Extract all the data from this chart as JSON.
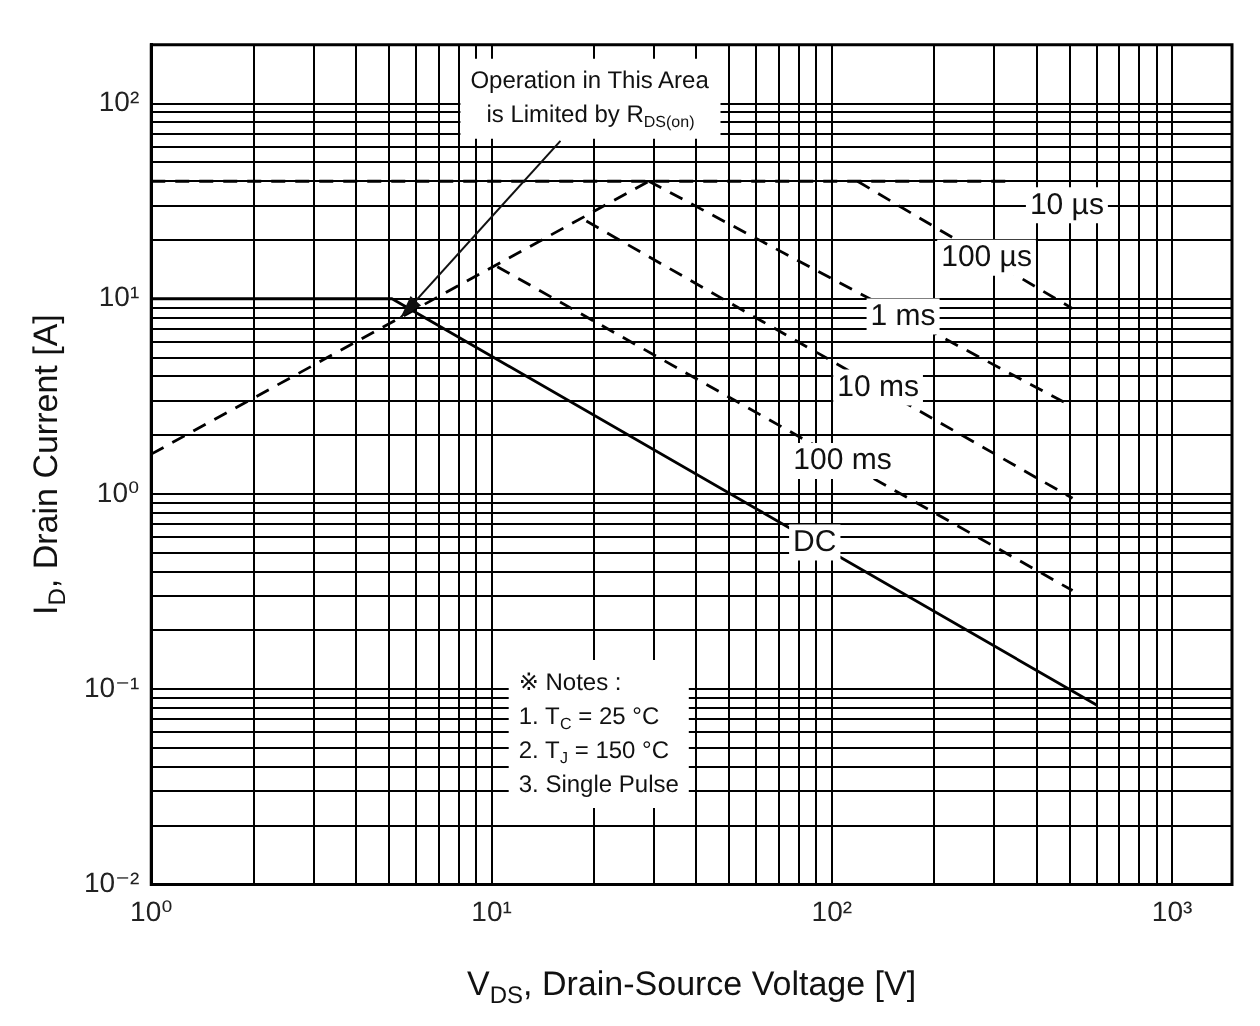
{
  "chart_data": {
    "type": "line",
    "xlabel": "V$_{DS}$, Drain-Source Voltage [V]",
    "ylabel": "I$_{D}$, Drain Current [A]",
    "log": "xy",
    "grid": true,
    "xlim": [
      1,
      1500
    ],
    "ylim": [
      0.01,
      200
    ],
    "xticks": [
      {
        "value": 1,
        "label": "10⁰"
      },
      {
        "value": 2,
        "label": null
      },
      {
        "value": 3,
        "label": null
      },
      {
        "value": 4,
        "label": null
      },
      {
        "value": 5,
        "label": null
      },
      {
        "value": 6,
        "label": null
      },
      {
        "value": 7,
        "label": null
      },
      {
        "value": 8,
        "label": null
      },
      {
        "value": 9,
        "label": null
      },
      {
        "value": 10,
        "label": "10¹"
      },
      {
        "value": 20,
        "label": null
      },
      {
        "value": 30,
        "label": null
      },
      {
        "value": 40,
        "label": null
      },
      {
        "value": 50,
        "label": null
      },
      {
        "value": 60,
        "label": null
      },
      {
        "value": 70,
        "label": null
      },
      {
        "value": 80,
        "label": null
      },
      {
        "value": 90,
        "label": null
      },
      {
        "value": 100,
        "label": "10²"
      },
      {
        "value": 200,
        "label": null
      },
      {
        "value": 300,
        "label": null
      },
      {
        "value": 400,
        "label": null
      },
      {
        "value": 500,
        "label": null
      },
      {
        "value": 600,
        "label": null
      },
      {
        "value": 700,
        "label": null
      },
      {
        "value": 800,
        "label": null
      },
      {
        "value": 900,
        "label": null
      },
      {
        "value": 1000,
        "label": "10³"
      }
    ],
    "yticks": [
      {
        "value": 0.01,
        "label": "10⁻²"
      },
      {
        "value": 0.02,
        "label": null
      },
      {
        "value": 0.03,
        "label": null
      },
      {
        "value": 0.04,
        "label": null
      },
      {
        "value": 0.05,
        "label": null
      },
      {
        "value": 0.06,
        "label": null
      },
      {
        "value": 0.07,
        "label": null
      },
      {
        "value": 0.08,
        "label": null
      },
      {
        "value": 0.09,
        "label": null
      },
      {
        "value": 0.1,
        "label": "10⁻¹"
      },
      {
        "value": 0.2,
        "label": null
      },
      {
        "value": 0.3,
        "label": null
      },
      {
        "value": 0.4,
        "label": null
      },
      {
        "value": 0.5,
        "label": null
      },
      {
        "value": 0.6,
        "label": null
      },
      {
        "value": 0.7,
        "label": null
      },
      {
        "value": 0.8,
        "label": null
      },
      {
        "value": 0.9,
        "label": null
      },
      {
        "value": 1,
        "label": "10⁰"
      },
      {
        "value": 2,
        "label": null
      },
      {
        "value": 3,
        "label": null
      },
      {
        "value": 4,
        "label": null
      },
      {
        "value": 5,
        "label": null
      },
      {
        "value": 6,
        "label": null
      },
      {
        "value": 7,
        "label": null
      },
      {
        "value": 8,
        "label": null
      },
      {
        "value": 9,
        "label": null
      },
      {
        "value": 10,
        "label": "10¹"
      },
      {
        "value": 20,
        "label": null
      },
      {
        "value": 30,
        "label": null
      },
      {
        "value": 40,
        "label": null
      },
      {
        "value": 50,
        "label": null
      },
      {
        "value": 60,
        "label": null
      },
      {
        "value": 70,
        "label": null
      },
      {
        "value": 80,
        "label": null
      },
      {
        "value": 90,
        "label": null
      },
      {
        "value": 100,
        "label": "10²"
      }
    ],
    "series": [
      {
        "color": "#000000",
        "line_style": "dashed",
        "x": [
          1,
          29
        ],
        "values": [
          1.6,
          40
        ]
      },
      {
        "name": "10 µs",
        "color": "#000000",
        "line_style": "dashed",
        "x": [
          1,
          336
        ],
        "values": [
          40,
          40
        ]
      },
      {
        "name": "100 µs",
        "color": "#000000",
        "line_style": "dashed",
        "x": [
          119,
          510
        ],
        "values": [
          40,
          8.9
        ]
      },
      {
        "name": "1 ms",
        "color": "#000000",
        "line_style": "dashed",
        "x": [
          29,
          510
        ],
        "values": [
          40,
          2.8
        ]
      },
      {
        "name": "10 ms",
        "color": "#000000",
        "line_style": "dashed",
        "x": [
          19,
          510
        ],
        "values": [
          25,
          0.95
        ]
      },
      {
        "name": "100 ms",
        "color": "#000000",
        "line_style": "dashed",
        "x": [
          10.4,
          510
        ],
        "values": [
          14.6,
          0.32
        ]
      },
      {
        "name": "DC",
        "color": "#000000",
        "line_style": "solid",
        "x": [
          1,
          5.1,
          600
        ],
        "values": [
          10,
          10,
          0.083
        ]
      }
    ],
    "annotations": [
      {
        "text": "Operation in This Area\nis Limited by R$_{DS(on)}$",
        "x": 5.4,
        "y": 8
      },
      "※ Notes :\n1. T$_{C}$ = 25 °C\n2. T$_{J}$ = 150 °C\n3. Single Pulse"
    ]
  }
}
